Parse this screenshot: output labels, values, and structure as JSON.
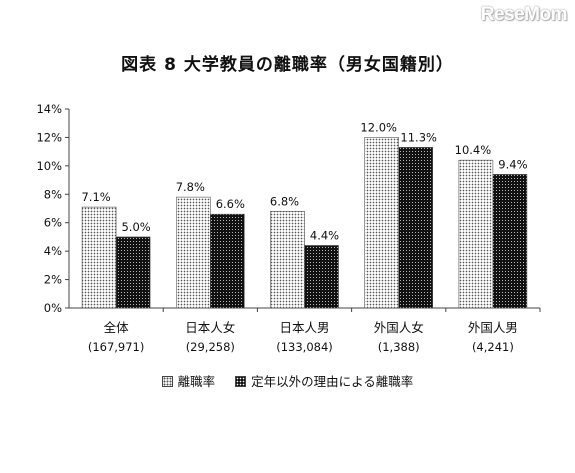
{
  "watermark": "ReseMom",
  "chart_data": {
    "type": "bar",
    "title": "図表 8  大学教員の離職率（男女国籍別）",
    "categories": [
      "全体",
      "日本人女",
      "日本人男",
      "外国人女",
      "外国人男"
    ],
    "category_counts": [
      "(167,971)",
      "(29,258)",
      "(133,084)",
      "(1,388)",
      "(4,241)"
    ],
    "series": [
      {
        "name": "離職率",
        "values": [
          7.1,
          7.8,
          6.8,
          12.0,
          10.4
        ],
        "labels": [
          "7.1%",
          "7.8%",
          "6.8%",
          "12.0%",
          "10.4%"
        ]
      },
      {
        "name": "定年以外の理由による離職率",
        "values": [
          5.0,
          6.6,
          4.4,
          11.3,
          9.4
        ],
        "labels": [
          "5.0%",
          "6.6%",
          "4.4%",
          "11.3%",
          "9.4%"
        ]
      }
    ],
    "ylim": [
      0,
      14
    ],
    "yticks": [
      "0%",
      "2%",
      "4%",
      "6%",
      "8%",
      "10%",
      "12%",
      "14%"
    ],
    "grid": false,
    "legend": "bottom"
  }
}
